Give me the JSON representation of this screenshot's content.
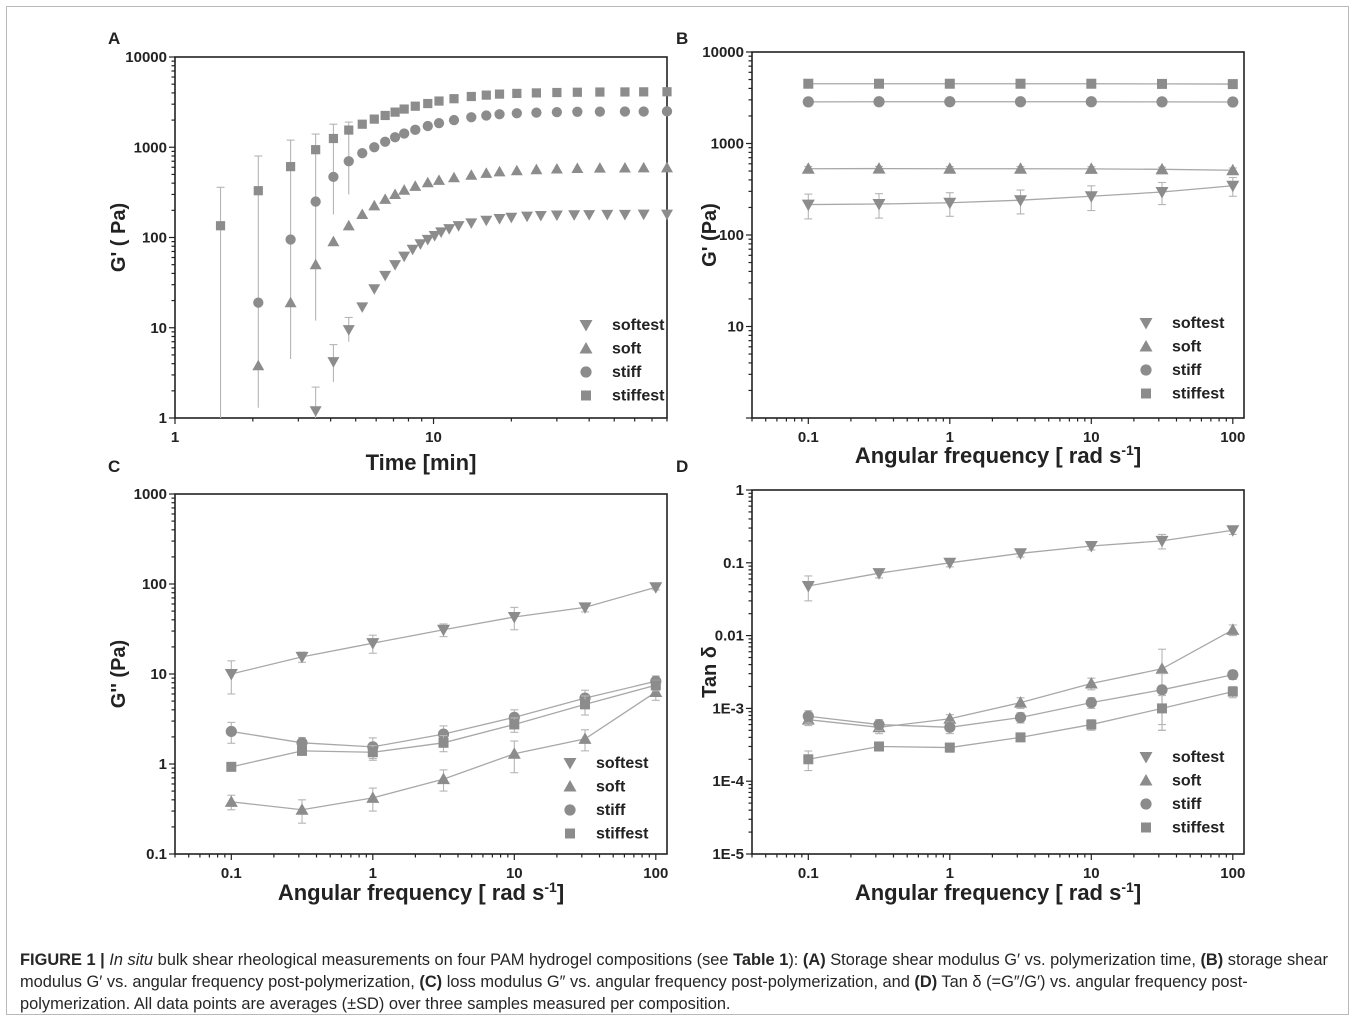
{
  "caption": {
    "label": "FIGURE 1 |",
    "italic_start": "In situ",
    "seg1": " bulk shear rheological measurements on four PAM hydrogel compositions (see ",
    "table_ref": "Table 1",
    "seg2": "): ",
    "a": "(A)",
    "seg3": " Storage shear modulus G′ vs. polymerization time, ",
    "b": "(B)",
    "seg4": " storage shear modulus G′ vs. angular frequency post-polymerization, ",
    "c": "(C)",
    "seg5": " loss modulus G″ vs. angular frequency post-polymerization, and ",
    "d": "(D)",
    "seg6": " Tan δ (=G″/G′) vs. angular frequency post-polymerization. All data points are averages (±SD) over three samples measured per composition."
  },
  "colors": {
    "marker": "#8c8c8c",
    "line": "#a8a8a8",
    "error": "#b5b5b5",
    "axis": "#222222"
  },
  "chart_data": [
    {
      "panel": "A",
      "type": "scatter",
      "xlabel": "Time [min]",
      "ylabel": "G' ( Pa)",
      "xscale": "log",
      "yscale": "log",
      "xlim": [
        1,
        80
      ],
      "ylim": [
        1,
        10000
      ],
      "xticks": [
        1,
        10
      ],
      "yticks": [
        1,
        10,
        100,
        1000,
        10000
      ],
      "legend_position": "bottom-right",
      "series": [
        {
          "name": "softest",
          "marker": "triangle-down",
          "x": [
            3.5,
            4.1,
            4.7,
            5.3,
            5.9,
            6.5,
            7.1,
            7.7,
            8.3,
            8.9,
            9.5,
            10.1,
            10.7,
            11.5,
            12.5,
            14,
            16,
            18,
            20,
            23,
            26,
            30,
            35,
            40,
            47,
            55,
            65,
            80
          ],
          "y": [
            1.2,
            4.2,
            9.5,
            17,
            27,
            38,
            50,
            62,
            74,
            85,
            95,
            105,
            115,
            125,
            135,
            145,
            155,
            162,
            167,
            172,
            175,
            177,
            178,
            179,
            180,
            180,
            181,
            181
          ]
        },
        {
          "name": "soft",
          "marker": "triangle-up",
          "x": [
            2.1,
            2.8,
            3.5,
            4.1,
            4.7,
            5.3,
            5.9,
            6.5,
            7.1,
            7.7,
            8.5,
            9.5,
            10.5,
            12,
            14,
            16,
            18,
            21,
            25,
            30,
            36,
            44,
            55,
            65,
            80
          ],
          "y": [
            3.8,
            19,
            50,
            90,
            135,
            180,
            225,
            265,
            300,
            335,
            370,
            405,
            430,
            460,
            490,
            515,
            535,
            550,
            565,
            575,
            583,
            588,
            590,
            592,
            593
          ]
        },
        {
          "name": "stiff",
          "marker": "circle",
          "x": [
            2.1,
            2.8,
            3.5,
            4.1,
            4.7,
            5.3,
            5.9,
            6.5,
            7.1,
            7.7,
            8.5,
            9.5,
            10.5,
            12,
            14,
            16,
            18,
            21,
            25,
            30,
            36,
            44,
            55,
            65,
            80
          ],
          "y": [
            19,
            95,
            250,
            470,
            700,
            860,
            1000,
            1150,
            1290,
            1420,
            1560,
            1720,
            1850,
            2000,
            2150,
            2250,
            2320,
            2380,
            2420,
            2450,
            2470,
            2480,
            2490,
            2490,
            2500
          ]
        },
        {
          "name": "stiffest",
          "marker": "square",
          "x": [
            1.5,
            2.1,
            2.8,
            3.5,
            4.1,
            4.7,
            5.3,
            5.9,
            6.5,
            7.1,
            7.7,
            8.5,
            9.5,
            10.5,
            12,
            14,
            16,
            18,
            21,
            25,
            30,
            36,
            44,
            55,
            65,
            80
          ],
          "y": [
            135,
            330,
            610,
            940,
            1250,
            1550,
            1800,
            2050,
            2250,
            2450,
            2650,
            2850,
            3050,
            3250,
            3450,
            3650,
            3780,
            3880,
            3950,
            4000,
            4040,
            4070,
            4090,
            4100,
            4110,
            4120
          ]
        }
      ],
      "error_bars": [
        {
          "x": 1.5,
          "low": 1,
          "high": 360
        },
        {
          "x": 2.1,
          "low": 1.3,
          "high": 800
        },
        {
          "x": 2.8,
          "low": 4.5,
          "high": 1200
        },
        {
          "x": 3.5,
          "low": 12,
          "high": 1400
        },
        {
          "x": 4.1,
          "low": 180,
          "high": 1800
        },
        {
          "x": 4.7,
          "low": 300,
          "high": 1900
        },
        {
          "x": 3.5,
          "low": 1,
          "high": 2.2
        },
        {
          "x": 4.1,
          "low": 2.5,
          "high": 6.5
        },
        {
          "x": 4.7,
          "low": 7,
          "high": 13
        }
      ]
    },
    {
      "panel": "B",
      "type": "line",
      "xlabel": "Angular frequency [ rad s-1]",
      "ylabel": "G' (Pa)",
      "xscale": "log",
      "yscale": "log",
      "xlim": [
        0.04,
        120
      ],
      "ylim": [
        1,
        10000
      ],
      "xticks": [
        0.1,
        1,
        10,
        100
      ],
      "yticks": [
        10,
        100,
        1000,
        10000
      ],
      "legend_position": "bottom-right",
      "x": [
        0.1,
        0.316,
        1,
        3.16,
        10,
        31.6,
        100
      ],
      "series": [
        {
          "name": "softest",
          "marker": "triangle-down",
          "values": [
            215,
            218,
            225,
            240,
            265,
            295,
            345
          ],
          "err": [
            65,
            65,
            65,
            70,
            80,
            80,
            80
          ]
        },
        {
          "name": "soft",
          "marker": "triangle-up",
          "values": [
            530,
            532,
            530,
            530,
            528,
            522,
            510
          ],
          "err": [
            30,
            30,
            30,
            30,
            30,
            30,
            30
          ]
        },
        {
          "name": "stiff",
          "marker": "circle",
          "values": [
            2850,
            2860,
            2860,
            2860,
            2860,
            2850,
            2840
          ],
          "err": [
            0,
            0,
            0,
            0,
            0,
            0,
            0
          ]
        },
        {
          "name": "stiffest",
          "marker": "square",
          "values": [
            4500,
            4500,
            4500,
            4500,
            4500,
            4480,
            4460
          ],
          "err": [
            0,
            0,
            0,
            0,
            0,
            0,
            0
          ]
        }
      ]
    },
    {
      "panel": "C",
      "type": "line",
      "xlabel": "Angular frequency [ rad s-1]",
      "ylabel": "G'' (Pa)",
      "xscale": "log",
      "yscale": "log",
      "xlim": [
        0.04,
        120
      ],
      "ylim": [
        0.1,
        1000
      ],
      "xticks": [
        0.1,
        1,
        10,
        100
      ],
      "yticks": [
        0.1,
        1,
        10,
        100,
        1000
      ],
      "legend_position": "bottom-right",
      "x": [
        0.1,
        0.316,
        1,
        3.16,
        10,
        31.6,
        100
      ],
      "series": [
        {
          "name": "softest",
          "marker": "triangle-down",
          "values": [
            10,
            15.5,
            22,
            31,
            43,
            55,
            92
          ],
          "err": [
            4,
            2,
            5,
            5,
            12,
            6,
            6
          ]
        },
        {
          "name": "soft",
          "marker": "triangle-up",
          "values": [
            0.38,
            0.31,
            0.42,
            0.68,
            1.3,
            1.9,
            6.3
          ],
          "err": [
            0.07,
            0.09,
            0.12,
            0.18,
            0.5,
            0.5,
            1.2
          ]
        },
        {
          "name": "stiff",
          "marker": "circle",
          "values": [
            2.3,
            1.72,
            1.55,
            2.15,
            3.3,
            5.4,
            8.3
          ],
          "err": [
            0.6,
            0.25,
            0.4,
            0.5,
            0.7,
            1.2,
            1.2
          ]
        },
        {
          "name": "stiffest",
          "marker": "square",
          "values": [
            0.93,
            1.4,
            1.35,
            1.72,
            2.75,
            4.6,
            7.5
          ],
          "err": [
            0,
            0.15,
            0.25,
            0.35,
            0.5,
            1.1,
            1.0
          ]
        }
      ]
    },
    {
      "panel": "D",
      "type": "line",
      "xlabel": "Angular frequency [ rad s-1]",
      "ylabel": "Tan δ",
      "xscale": "log",
      "yscale": "log",
      "xlim": [
        0.04,
        120
      ],
      "ylim": [
        1e-05,
        1
      ],
      "xticks": [
        0.1,
        1,
        10,
        100
      ],
      "yticks": [
        1e-05,
        0.0001,
        0.001,
        0.01,
        0.1,
        1
      ],
      "ytick_labels": [
        "1E-5",
        "1E-4",
        "1E-3",
        "0.01",
        "0.1",
        "1"
      ],
      "legend_position": "bottom-right",
      "x": [
        0.1,
        0.316,
        1,
        3.16,
        10,
        31.6,
        100
      ],
      "series": [
        {
          "name": "softest",
          "marker": "triangle-down",
          "values": [
            0.048,
            0.072,
            0.1,
            0.135,
            0.17,
            0.2,
            0.28
          ],
          "err": [
            0.018,
            0.01,
            0.012,
            0.015,
            0.02,
            0.045,
            0.035
          ]
        },
        {
          "name": "soft",
          "marker": "triangle-up",
          "values": [
            0.0007,
            0.00055,
            0.00072,
            0.0012,
            0.0022,
            0.0035,
            0.012
          ],
          "err": [
            0.00012,
            0.0001,
            0.0001,
            0.0002,
            0.0004,
            0.003,
            0.002
          ]
        },
        {
          "name": "stiff",
          "marker": "circle",
          "values": [
            0.00078,
            0.0006,
            0.00055,
            0.00075,
            0.0012,
            0.0018,
            0.0029
          ],
          "err": [
            0.00015,
            0.0001,
            0.0001,
            0.00012,
            0.0002,
            0.0012,
            0.0004
          ]
        },
        {
          "name": "stiffest",
          "marker": "square",
          "values": [
            0.0002,
            0.0003,
            0.00029,
            0.0004,
            0.0006,
            0.001,
            0.0017
          ],
          "err": [
            6e-05,
            4e-05,
            4e-05,
            5e-05,
            0.0001,
            0.0005,
            0.0003
          ]
        }
      ]
    }
  ]
}
